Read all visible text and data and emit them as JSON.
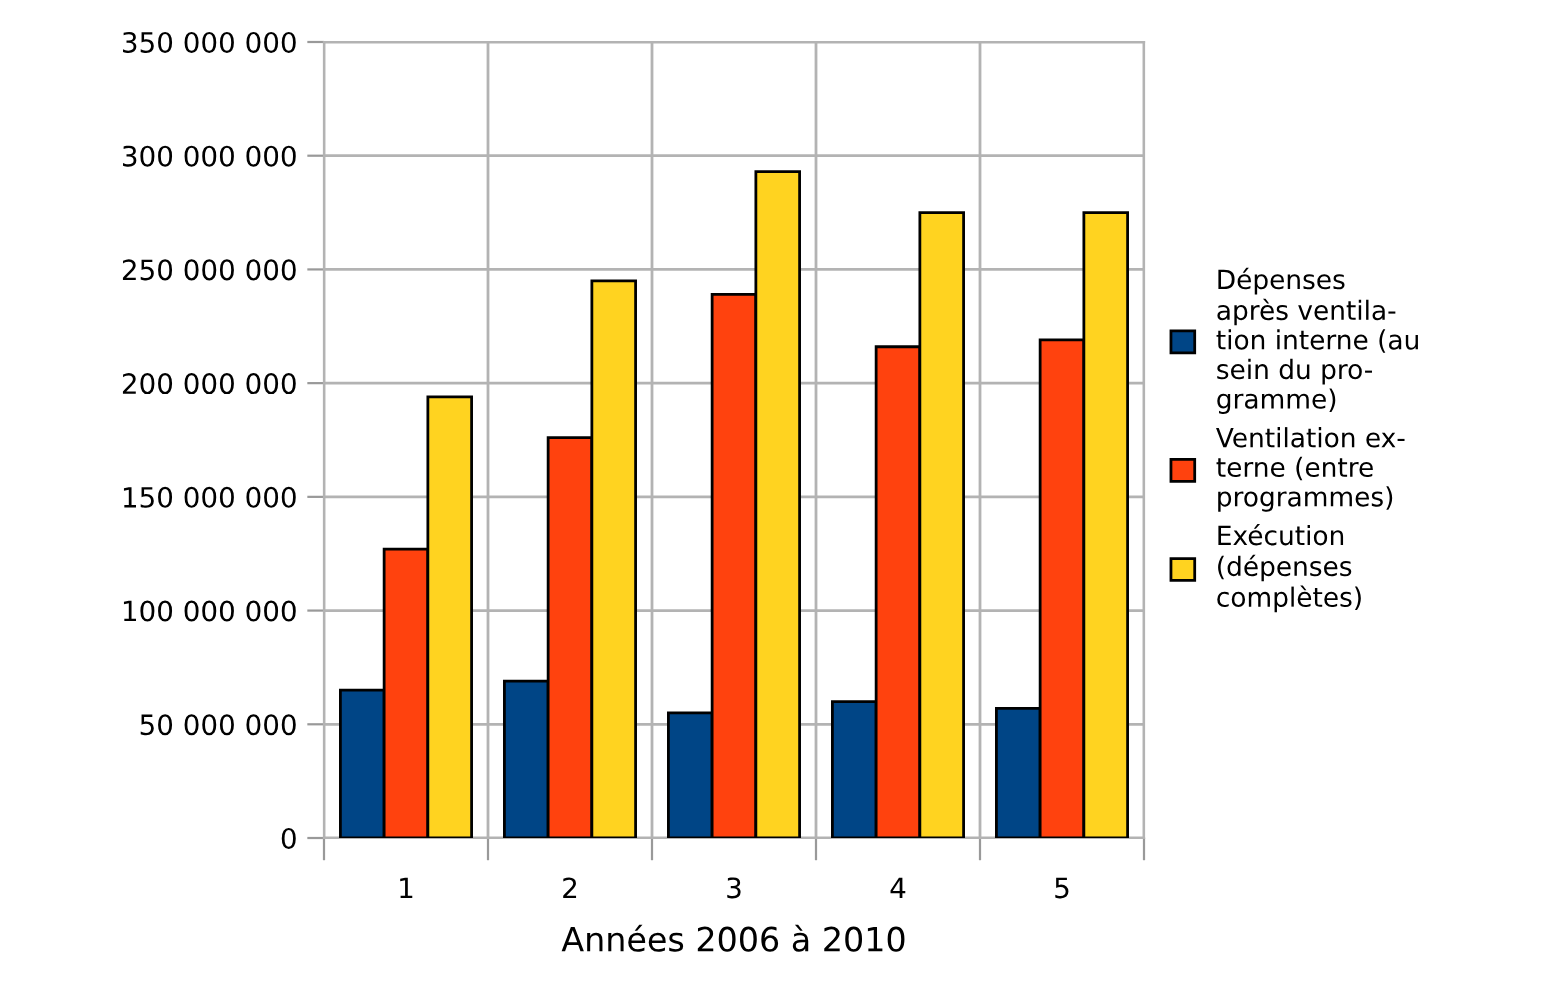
{
  "chart_data": {
    "type": "bar",
    "xlabel": "Années 2006 à 2010",
    "categories": [
      "1",
      "2",
      "3",
      "4",
      "5"
    ],
    "series": [
      {
        "name": "Dépenses\naprès ventila-\ntion interne (au\nsein du pro-\ngramme)",
        "color": "#004586",
        "values": [
          65000000,
          69000000,
          55000000,
          60000000,
          57000000
        ]
      },
      {
        "name": "Ventilation ex-\nterne (entre\nprogrammes)",
        "color": "#ff420e",
        "values": [
          127000000,
          176000000,
          239000000,
          216000000,
          219000000
        ]
      },
      {
        "name": "Exécution\n(dépenses\ncomplètes)",
        "color": "#ffd320",
        "values": [
          194000000,
          245000000,
          293000000,
          275000000,
          275000000
        ]
      }
    ],
    "ylim": [
      0,
      350000000
    ],
    "yticks": [
      {
        "value": 0,
        "label": "0"
      },
      {
        "value": 50000000,
        "label": "50 000 000"
      },
      {
        "value": 100000000,
        "label": "100 000 000"
      },
      {
        "value": 150000000,
        "label": "150 000 000"
      },
      {
        "value": 200000000,
        "label": "200 000 000"
      },
      {
        "value": 250000000,
        "label": "250 000 000"
      },
      {
        "value": 300000000,
        "label": "300 000 000"
      },
      {
        "value": 350000000,
        "label": "350 000 000"
      }
    ],
    "grid": true,
    "legend": "right"
  }
}
